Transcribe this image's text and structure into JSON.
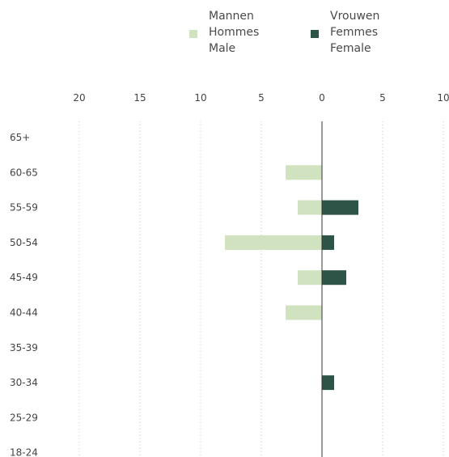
{
  "legend": {
    "male": {
      "lines": [
        "Mannen",
        "Hommes",
        "Male"
      ],
      "color": "#d1e2c0"
    },
    "female": {
      "lines": [
        "Vrouwen",
        "Femmes",
        "Female"
      ],
      "color": "#2d5446"
    }
  },
  "chart_data": {
    "type": "bar",
    "orientation": "horizontal",
    "layout": "population-pyramid",
    "categories": [
      "65+",
      "60-65",
      "55-59",
      "50-54",
      "45-49",
      "40-44",
      "35-39",
      "30-34",
      "25-29",
      "18-24"
    ],
    "x_ticks": [
      "20",
      "15",
      "10",
      "5",
      "0",
      "5",
      "10"
    ],
    "xlim": [
      -20,
      10
    ],
    "grid": "vertical dotted",
    "series": [
      {
        "name": "Mannen / Hommes / Male",
        "side": "left",
        "color": "#d1e2c0",
        "values": [
          0,
          3,
          2,
          8,
          2,
          3,
          0,
          0,
          0,
          0
        ]
      },
      {
        "name": "Vrouwen / Femmes / Female",
        "side": "right",
        "color": "#2d5446",
        "values": [
          0,
          0,
          3,
          1,
          2,
          0,
          0,
          1,
          0,
          0
        ]
      }
    ]
  }
}
